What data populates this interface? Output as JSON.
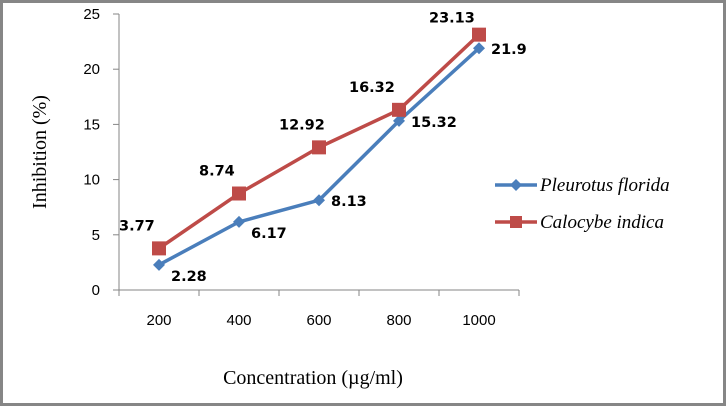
{
  "chart_data": {
    "type": "line",
    "title": "",
    "xlabel": "Concentration (µg/ml)",
    "ylabel": "Inhibition (%)",
    "categories": [
      "200",
      "400",
      "600",
      "800",
      "1000"
    ],
    "ylim": [
      0,
      25
    ],
    "yticks": [
      "0",
      "5",
      "10",
      "15",
      "20",
      "25"
    ],
    "ytick_values": [
      0,
      5,
      10,
      15,
      20,
      25
    ],
    "grid": false,
    "legend_position": "right",
    "series": [
      {
        "name": "Pleurotus florida",
        "color": "#4a7ebb",
        "marker": "diamond",
        "values": [
          2.28,
          6.17,
          8.13,
          15.32,
          21.9
        ],
        "labels": [
          "2.28",
          "6.17",
          "8.13",
          "15.32",
          "21.9"
        ]
      },
      {
        "name": "Calocybe indica",
        "color": "#be4b48",
        "marker": "square",
        "values": [
          3.77,
          8.74,
          12.92,
          16.32,
          23.13
        ],
        "labels": [
          "3.77",
          "8.74",
          "12.92",
          "16.32",
          "23.13"
        ]
      }
    ]
  }
}
